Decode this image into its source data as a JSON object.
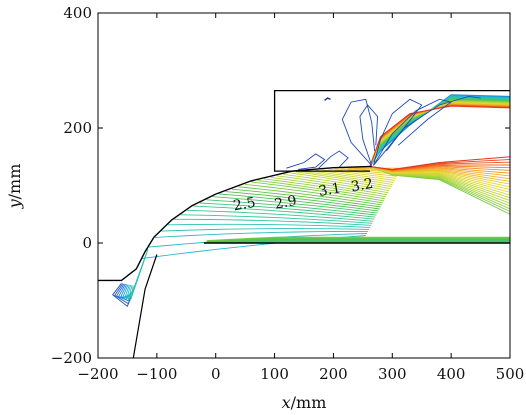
{
  "chart_data": {
    "type": "contour",
    "title": "",
    "xlabel_var": "x",
    "xlabel_unit": "/mm",
    "ylabel_var": "y",
    "ylabel_unit": "/mm",
    "xlim": [
      -200,
      500
    ],
    "ylim": [
      -200,
      400
    ],
    "x_ticks": [
      -200,
      -100,
      0,
      100,
      200,
      300,
      400,
      500
    ],
    "y_ticks": [
      -200,
      0,
      200,
      400
    ],
    "x_tick_labels": [
      "−200",
      "−100",
      "0",
      "100",
      "200",
      "300",
      "400",
      "500"
    ],
    "y_tick_labels": [
      "−200",
      "0",
      "200",
      "400"
    ],
    "contour_labels": [
      {
        "text": "2.5",
        "x": 50,
        "y": 60
      },
      {
        "text": "2.9",
        "x": 120,
        "y": 63
      },
      {
        "text": "3.1",
        "x": 195,
        "y": 85
      },
      {
        "text": "3.2",
        "x": 250,
        "y": 93
      }
    ],
    "geometry": {
      "ramp_wall": [
        [
          -200,
          -65
        ],
        [
          -160,
          -65
        ],
        [
          -135,
          -45
        ],
        [
          -120,
          -15
        ],
        [
          -105,
          10
        ],
        [
          -75,
          40
        ],
        [
          -40,
          65
        ],
        [
          0,
          85
        ],
        [
          60,
          108
        ],
        [
          130,
          125
        ],
        [
          200,
          131
        ],
        [
          265,
          133
        ]
      ],
      "lower_wall_lines": [
        [
          -140,
          -200
        ],
        [
          -120,
          -80
        ],
        [
          -100,
          -20
        ]
      ],
      "inner_body_line": [
        [
          -20,
          0
        ],
        [
          500,
          0
        ]
      ],
      "cowl_box": {
        "x0": 100,
        "x1": 500,
        "y0": 125,
        "y1": 265
      }
    },
    "colormap": [
      "#1b2fa0",
      "#1f6fd6",
      "#22b5d8",
      "#2fc9a0",
      "#55c24a",
      "#a9d43a",
      "#e6d82e",
      "#f39a26",
      "#e5331d"
    ],
    "grid": false,
    "legend": "none"
  }
}
